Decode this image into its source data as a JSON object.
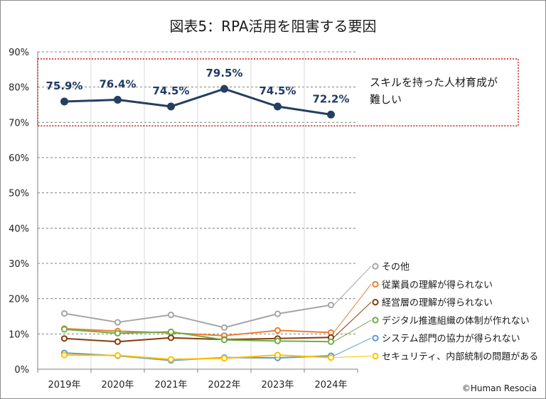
{
  "chart_data": {
    "type": "line",
    "title": "図表5：RPA活用を阻害する要因",
    "categories": [
      "2019年",
      "2020年",
      "2021年",
      "2022年",
      "2023年",
      "2024年"
    ],
    "yticks": [
      "0%",
      "10%",
      "20%",
      "30%",
      "40%",
      "50%",
      "60%",
      "70%",
      "80%",
      "90%"
    ],
    "ylim": [
      0,
      90
    ],
    "grid": true,
    "series": [
      {
        "name": "スキルを持った人材育成が難しい",
        "color": "#243f60",
        "emphasized": true,
        "values": [
          75.9,
          76.4,
          74.5,
          79.5,
          74.5,
          72.2
        ],
        "data_labels": [
          "75.9%",
          "76.4%",
          "74.5%",
          "79.5%",
          "74.5%",
          "72.2%"
        ]
      },
      {
        "name": "その他",
        "color": "#a6a6a6",
        "values": [
          15.8,
          13.3,
          15.4,
          11.8,
          15.7,
          18.2
        ]
      },
      {
        "name": "従業員の理解が得られない",
        "color": "#ed7d31",
        "values": [
          11.5,
          10.8,
          10.3,
          9.5,
          11.0,
          10.4
        ]
      },
      {
        "name": "経営層の理解が得られない",
        "color": "#843c0c",
        "values": [
          8.7,
          7.8,
          8.9,
          8.4,
          8.7,
          9.0
        ]
      },
      {
        "name": "デジタル推進組織の体制が作れない",
        "color": "#70ad47",
        "values": [
          11.3,
          10.2,
          10.6,
          8.3,
          8.0,
          7.8
        ]
      },
      {
        "name": "システム部門の協力が得られない",
        "color": "#5b9bd5",
        "values": [
          4.6,
          3.8,
          2.5,
          3.3,
          3.2,
          3.8
        ]
      },
      {
        "name": "セキュリティ、内部統制の問題がある",
        "color": "#ffc000",
        "values": [
          4.0,
          3.9,
          2.8,
          3.1,
          4.0,
          3.3
        ]
      }
    ],
    "annotation": {
      "lines": [
        "スキルを持った人材育成が",
        "難しい"
      ],
      "range": [
        69,
        88
      ],
      "box_color": "#c00000"
    },
    "legend_placement": "right",
    "credit": "©Human Resocia"
  }
}
